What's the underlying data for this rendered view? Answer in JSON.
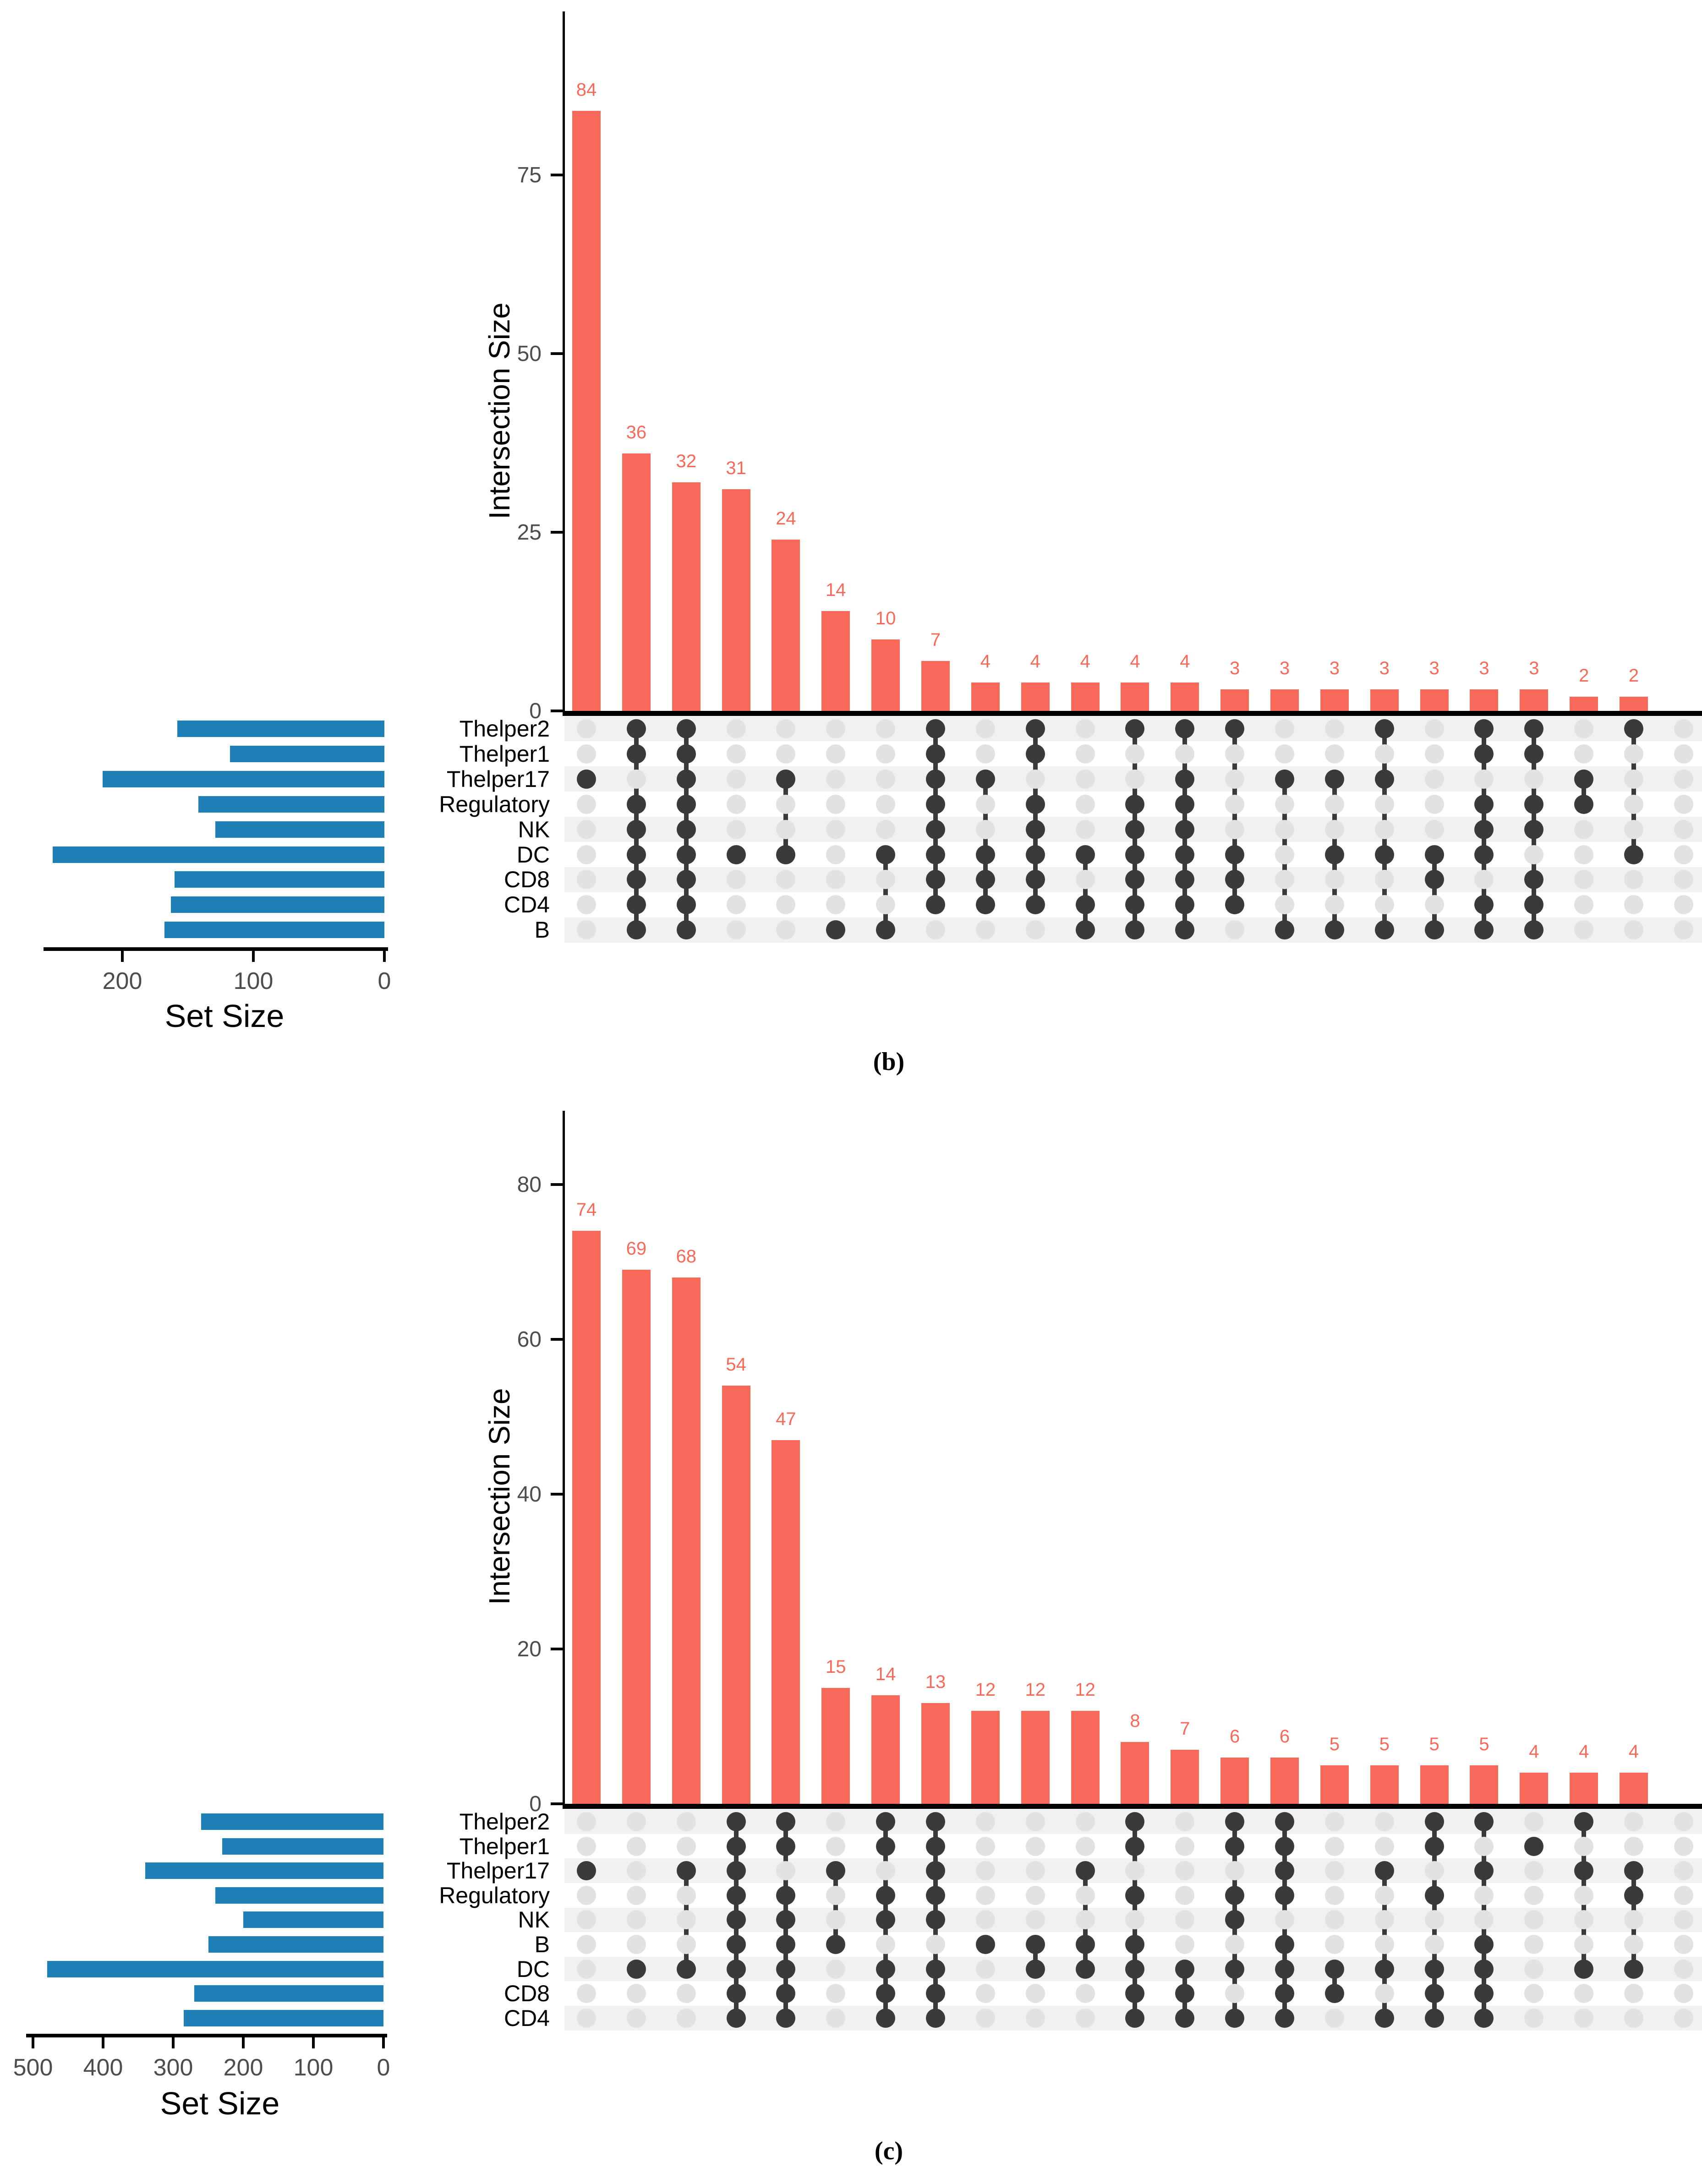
{
  "palette": {
    "bar_red": "#f9695a",
    "set_blue": "#1e80b6",
    "dot_active": "#3a3a3a",
    "dot_inactive": "#e2e2e2",
    "stripe": "#f1f1f1",
    "axis_black": "#000000",
    "tick_gray": "#4d4d4d"
  },
  "chart_data": [
    {
      "type": "bar",
      "variant": "upset",
      "panel": "b",
      "caption": "(b)",
      "ylabel": "Intersection Size",
      "set_size_label": "Set Size",
      "yticks": [
        0,
        25,
        50,
        75
      ],
      "ylim": [
        0,
        88
      ],
      "grid": "off",
      "sets": [
        "Thelper2",
        "Thelper1",
        "Thelper17",
        "Regulatory",
        "NK",
        "DC",
        "CD8",
        "CD4",
        "B"
      ],
      "set_sizes": [
        158,
        118,
        215,
        142,
        129,
        253,
        160,
        163,
        168
      ],
      "set_axis_ticks": [
        200,
        100,
        0
      ],
      "set_axis_max": 260,
      "intersections": [
        {
          "size": 84,
          "sets": [
            "Thelper17"
          ]
        },
        {
          "size": 36,
          "sets": [
            "Thelper2",
            "Thelper1",
            "Regulatory",
            "NK",
            "DC",
            "CD8",
            "CD4",
            "B"
          ]
        },
        {
          "size": 32,
          "sets": [
            "Thelper2",
            "Thelper1",
            "Thelper17",
            "Regulatory",
            "NK",
            "DC",
            "CD8",
            "CD4",
            "B"
          ]
        },
        {
          "size": 31,
          "sets": [
            "DC"
          ]
        },
        {
          "size": 24,
          "sets": [
            "Thelper17",
            "DC"
          ]
        },
        {
          "size": 14,
          "sets": [
            "B"
          ]
        },
        {
          "size": 10,
          "sets": [
            "DC",
            "B"
          ]
        },
        {
          "size": 7,
          "sets": [
            "Thelper2",
            "Thelper1",
            "Thelper17",
            "Regulatory",
            "NK",
            "DC",
            "CD8",
            "CD4"
          ]
        },
        {
          "size": 4,
          "sets": [
            "Thelper17",
            "DC",
            "CD8",
            "CD4"
          ]
        },
        {
          "size": 4,
          "sets": [
            "Thelper2",
            "Thelper1",
            "Regulatory",
            "NK",
            "DC",
            "CD8",
            "CD4"
          ]
        },
        {
          "size": 4,
          "sets": [
            "DC",
            "CD4",
            "B"
          ]
        },
        {
          "size": 4,
          "sets": [
            "Thelper2",
            "Regulatory",
            "NK",
            "DC",
            "CD8",
            "CD4",
            "B"
          ]
        },
        {
          "size": 4,
          "sets": [
            "Thelper2",
            "Thelper17",
            "Regulatory",
            "NK",
            "DC",
            "CD8",
            "CD4",
            "B"
          ]
        },
        {
          "size": 3,
          "sets": [
            "Thelper2",
            "DC",
            "CD8",
            "CD4"
          ]
        },
        {
          "size": 3,
          "sets": [
            "Thelper17",
            "B"
          ]
        },
        {
          "size": 3,
          "sets": [
            "Thelper17",
            "DC",
            "B"
          ]
        },
        {
          "size": 3,
          "sets": [
            "Thelper2",
            "Thelper17",
            "DC",
            "B"
          ]
        },
        {
          "size": 3,
          "sets": [
            "DC",
            "CD8",
            "B"
          ]
        },
        {
          "size": 3,
          "sets": [
            "Thelper2",
            "Thelper1",
            "Regulatory",
            "NK",
            "DC",
            "CD4",
            "B"
          ]
        },
        {
          "size": 3,
          "sets": [
            "Thelper2",
            "Thelper1",
            "Regulatory",
            "NK",
            "CD8",
            "CD4",
            "B"
          ]
        },
        {
          "size": 2,
          "sets": [
            "Thelper17",
            "Regulatory"
          ]
        },
        {
          "size": 2,
          "sets": [
            "Thelper2",
            "DC"
          ]
        }
      ]
    },
    {
      "type": "bar",
      "variant": "upset",
      "panel": "c",
      "caption": "(c)",
      "ylabel": "Intersection Size",
      "set_size_label": "Set Size",
      "yticks": [
        0,
        20,
        40,
        60,
        80
      ],
      "ylim": [
        0,
        85
      ],
      "grid": "off",
      "sets": [
        "Thelper2",
        "Thelper1",
        "Thelper17",
        "Regulatory",
        "NK",
        "B",
        "DC",
        "CD8",
        "CD4"
      ],
      "set_sizes": [
        260,
        230,
        340,
        240,
        200,
        250,
        480,
        270,
        285
      ],
      "set_axis_ticks": [
        500,
        400,
        300,
        200,
        100,
        0
      ],
      "set_axis_max": 510,
      "intersections": [
        {
          "size": 74,
          "sets": [
            "Thelper17"
          ]
        },
        {
          "size": 69,
          "sets": [
            "DC"
          ]
        },
        {
          "size": 68,
          "sets": [
            "Thelper17",
            "DC"
          ]
        },
        {
          "size": 54,
          "sets": [
            "Thelper2",
            "Thelper1",
            "Thelper17",
            "Regulatory",
            "NK",
            "B",
            "DC",
            "CD8",
            "CD4"
          ]
        },
        {
          "size": 47,
          "sets": [
            "Thelper2",
            "Thelper1",
            "Regulatory",
            "NK",
            "B",
            "DC",
            "CD8",
            "CD4"
          ]
        },
        {
          "size": 15,
          "sets": [
            "Thelper17",
            "B"
          ]
        },
        {
          "size": 14,
          "sets": [
            "Thelper2",
            "Thelper1",
            "Regulatory",
            "NK",
            "DC",
            "CD8",
            "CD4"
          ]
        },
        {
          "size": 13,
          "sets": [
            "Thelper2",
            "Thelper1",
            "Thelper17",
            "Regulatory",
            "NK",
            "DC",
            "CD8",
            "CD4"
          ]
        },
        {
          "size": 12,
          "sets": [
            "B"
          ]
        },
        {
          "size": 12,
          "sets": [
            "B",
            "DC"
          ]
        },
        {
          "size": 12,
          "sets": [
            "Thelper17",
            "B",
            "DC"
          ]
        },
        {
          "size": 8,
          "sets": [
            "Thelper2",
            "Thelper1",
            "Regulatory",
            "B",
            "DC",
            "CD8",
            "CD4"
          ]
        },
        {
          "size": 7,
          "sets": [
            "DC",
            "CD8",
            "CD4"
          ]
        },
        {
          "size": 6,
          "sets": [
            "Thelper2",
            "Thelper1",
            "Regulatory",
            "NK",
            "DC",
            "CD4"
          ]
        },
        {
          "size": 6,
          "sets": [
            "Thelper2",
            "Thelper1",
            "Thelper17",
            "Regulatory",
            "B",
            "DC",
            "CD8",
            "CD4"
          ]
        },
        {
          "size": 5,
          "sets": [
            "DC",
            "CD8"
          ]
        },
        {
          "size": 5,
          "sets": [
            "Thelper17",
            "DC",
            "CD4"
          ]
        },
        {
          "size": 5,
          "sets": [
            "Thelper2",
            "Thelper1",
            "Regulatory",
            "DC",
            "CD8",
            "CD4"
          ]
        },
        {
          "size": 5,
          "sets": [
            "Thelper2",
            "Thelper17",
            "B",
            "DC",
            "CD8",
            "CD4"
          ]
        },
        {
          "size": 4,
          "sets": [
            "Thelper1"
          ]
        },
        {
          "size": 4,
          "sets": [
            "Thelper2",
            "Thelper17",
            "DC"
          ]
        },
        {
          "size": 4,
          "sets": [
            "Thelper17",
            "Regulatory",
            "DC"
          ]
        }
      ]
    }
  ]
}
